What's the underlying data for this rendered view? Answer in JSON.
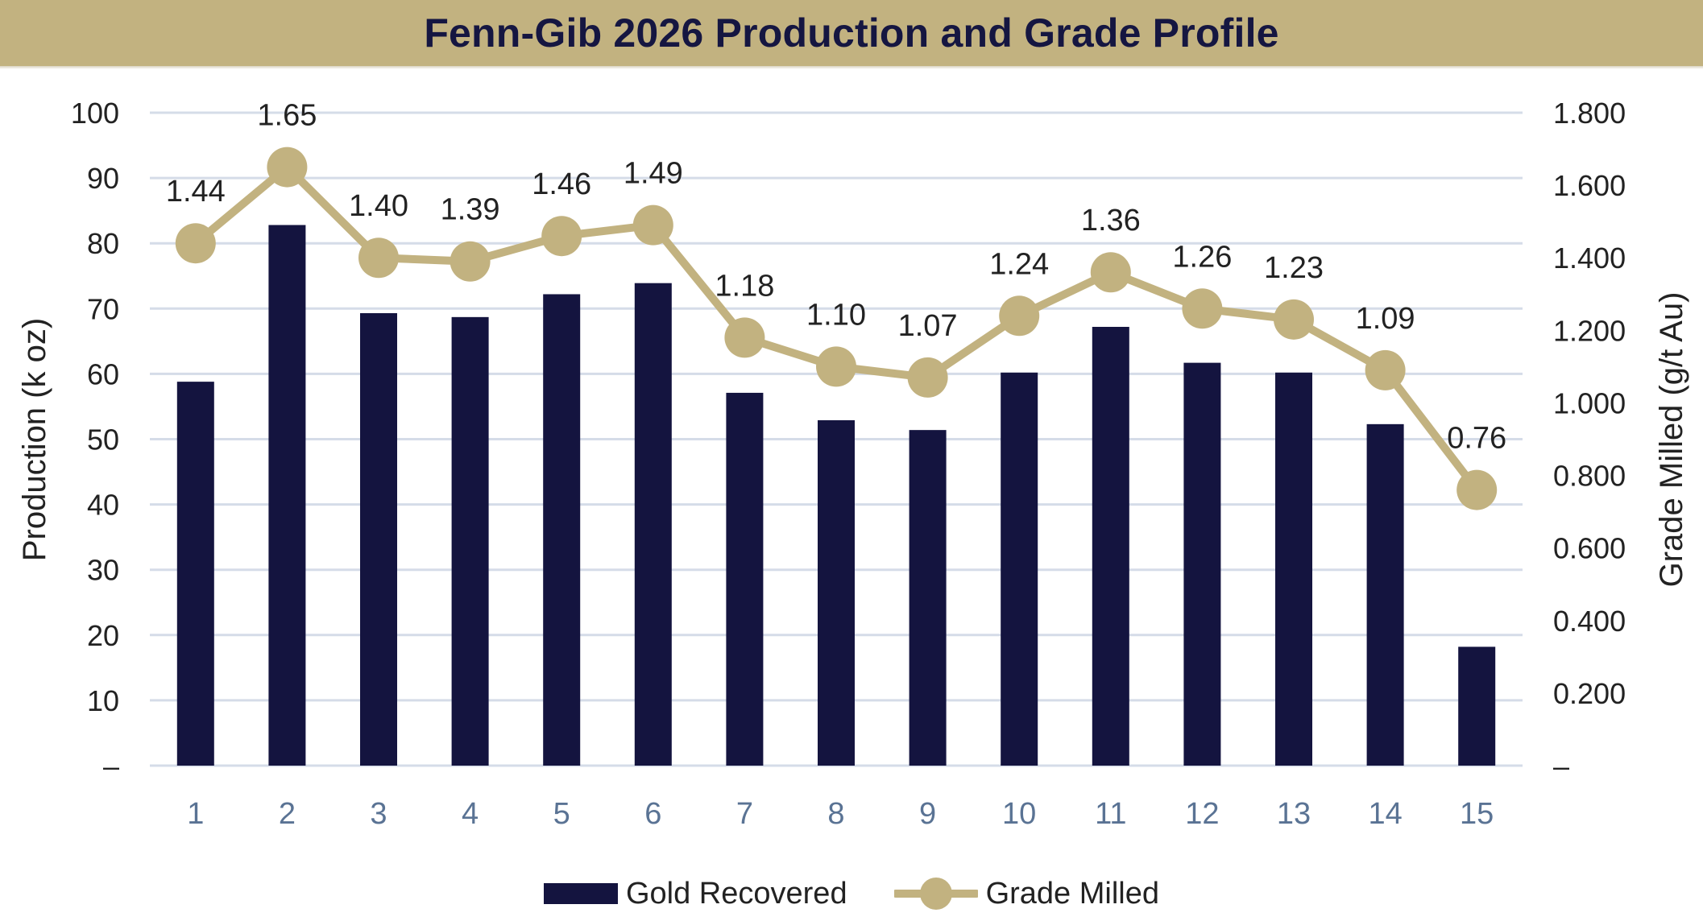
{
  "colors": {
    "title_band": "#c2b280",
    "title_text": "#151641",
    "bar": "#14143f",
    "line": "#c2b280",
    "grid": "#d5dce8",
    "x_tick_text": "#5a7394",
    "text": "#222222"
  },
  "chart_data": {
    "type": "bar",
    "combo_with": "line",
    "title": "Fenn-Gib 2026 Production and Grade Profile",
    "ylabel": "Production (k oz)",
    "ylabel_right": "Grade Milled (g/t Au)",
    "categories": [
      "1",
      "2",
      "3",
      "4",
      "5",
      "6",
      "7",
      "8",
      "9",
      "10",
      "11",
      "12",
      "13",
      "14",
      "15"
    ],
    "ylim": [
      0,
      100
    ],
    "ylim_right": [
      0,
      1.8
    ],
    "y_ticks": [
      "–",
      "10",
      "20",
      "30",
      "40",
      "50",
      "60",
      "70",
      "80",
      "90",
      "100"
    ],
    "y_ticks_right": [
      "–",
      "0.200",
      "0.400",
      "0.600",
      "0.800",
      "1.000",
      "1.200",
      "1.400",
      "1.600",
      "1.800"
    ],
    "grid": true,
    "legend_position": "bottom",
    "series": [
      {
        "name": "Gold Recovered",
        "type": "bar",
        "axis": "left",
        "values": [
          58.8,
          82.8,
          69.3,
          68.7,
          72.2,
          73.9,
          57.1,
          52.9,
          51.4,
          60.2,
          67.2,
          61.7,
          60.2,
          52.3,
          18.2
        ]
      },
      {
        "name": "Grade Milled",
        "type": "line",
        "axis": "right",
        "values": [
          1.44,
          1.65,
          1.4,
          1.39,
          1.46,
          1.49,
          1.18,
          1.1,
          1.07,
          1.24,
          1.36,
          1.26,
          1.23,
          1.09,
          0.76
        ],
        "labels": [
          "1.44",
          "1.65",
          "1.40",
          "1.39",
          "1.46",
          "1.49",
          "1.18",
          "1.10",
          "1.07",
          "1.24",
          "1.36",
          "1.26",
          "1.23",
          "1.09",
          "0.76"
        ]
      }
    ]
  }
}
